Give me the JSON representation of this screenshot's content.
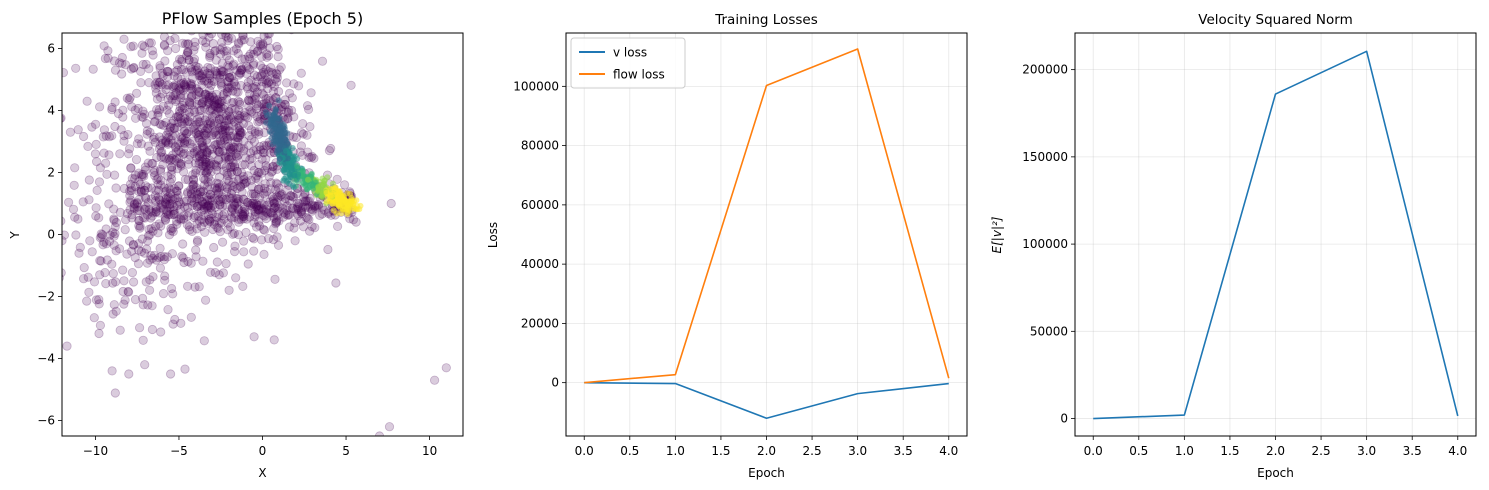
{
  "chart_data": [
    {
      "type": "scatter",
      "title": "PFlow Samples (Epoch 5)",
      "xlabel": "X",
      "ylabel": "Y",
      "xlim": [
        -12,
        12
      ],
      "ylim": [
        -6.5,
        6.5
      ],
      "xticks": [
        -10,
        -5,
        0,
        5,
        10
      ],
      "xtick_labels": [
        "−10",
        "−5",
        "0",
        "5",
        "10"
      ],
      "yticks": [
        -6,
        -4,
        -2,
        0,
        2,
        4,
        6
      ],
      "ytick_labels": [
        "−6",
        "−4",
        "−2",
        "0",
        "2",
        "4",
        "6"
      ],
      "grid": false,
      "colormap": "viridis",
      "point_alpha": 0.2,
      "points_sample": [
        {
          "x": -11.5,
          "y": 3.3
        },
        {
          "x": -10.5,
          "y": 4.3
        },
        {
          "x": -10.0,
          "y": 2.6
        },
        {
          "x": -9.8,
          "y": -2.1
        },
        {
          "x": -9.0,
          "y": -4.4
        },
        {
          "x": -8.8,
          "y": 5.3
        },
        {
          "x": -8.0,
          "y": -4.5
        },
        {
          "x": -7.6,
          "y": -2.1
        },
        {
          "x": -6.5,
          "y": 2.0
        },
        {
          "x": -5.5,
          "y": -4.5
        },
        {
          "x": -5.2,
          "y": 6.0
        },
        {
          "x": -4.0,
          "y": -0.5
        },
        {
          "x": -2.0,
          "y": -1.8
        },
        {
          "x": -0.5,
          "y": -3.3
        },
        {
          "x": 0.7,
          "y": -3.4
        },
        {
          "x": 7.7,
          "y": 1.0
        },
        {
          "x": 7.6,
          "y": -6.2
        },
        {
          "x": 7.0,
          "y": -6.5
        },
        {
          "x": 10.3,
          "y": -4.7
        },
        {
          "x": 11.0,
          "y": -4.3
        },
        {
          "x": -12.0,
          "y": -0.2
        },
        {
          "x": -11.7,
          "y": -3.6
        },
        {
          "x": 5.6,
          "y": 0.4
        },
        {
          "x": 5.0,
          "y": 0.8
        }
      ]
    },
    {
      "type": "line",
      "title": "Training Losses",
      "xlabel": "Epoch",
      "ylabel": "Loss",
      "x": [
        0,
        1,
        2,
        3,
        4
      ],
      "xlim": [
        -0.2,
        4.2
      ],
      "ylim": [
        -18000,
        118000
      ],
      "xticks": [
        0,
        0.5,
        1,
        1.5,
        2,
        2.5,
        3,
        3.5,
        4
      ],
      "xtick_labels": [
        "0.0",
        "0.5",
        "1.0",
        "1.5",
        "2.0",
        "2.5",
        "3.0",
        "3.5",
        "4.0"
      ],
      "yticks": [
        0,
        20000,
        40000,
        60000,
        80000,
        100000
      ],
      "ytick_labels": [
        "0",
        "20000",
        "40000",
        "60000",
        "80000",
        "100000"
      ],
      "grid": true,
      "legend": "top-left",
      "series": [
        {
          "name": "v loss",
          "color": "#1f77b4",
          "values": [
            0,
            -300,
            -12000,
            -3700,
            -300
          ]
        },
        {
          "name": "flow loss",
          "color": "#ff7f0e",
          "values": [
            0,
            2700,
            100300,
            112600,
            1500
          ]
        }
      ]
    },
    {
      "type": "line",
      "title": "Velocity Squared Norm",
      "xlabel": "Epoch",
      "ylabel": "E[|v|²]",
      "x": [
        0,
        1,
        2,
        3,
        4
      ],
      "xlim": [
        -0.2,
        4.2
      ],
      "ylim": [
        -10000,
        221000
      ],
      "xticks": [
        0,
        0.5,
        1,
        1.5,
        2,
        2.5,
        3,
        3.5,
        4
      ],
      "xtick_labels": [
        "0.0",
        "0.5",
        "1.0",
        "1.5",
        "2.0",
        "2.5",
        "3.0",
        "3.5",
        "4.0"
      ],
      "yticks": [
        0,
        50000,
        100000,
        150000,
        200000
      ],
      "ytick_labels": [
        "0",
        "50000",
        "100000",
        "150000",
        "200000"
      ],
      "grid": true,
      "series": [
        {
          "color": "#1f77b4",
          "values": [
            0,
            2000,
            186000,
            210500,
            1500
          ]
        }
      ]
    }
  ]
}
